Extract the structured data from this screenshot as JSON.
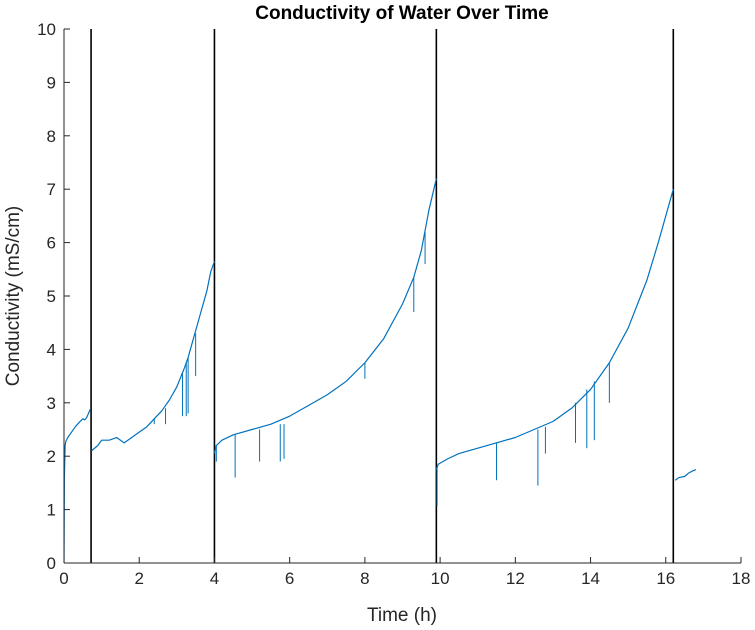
{
  "chart_data": {
    "type": "line",
    "title": "Conductivity of Water Over Time",
    "xlabel": "Time (h)",
    "ylabel": "Conductivity (mS/cm)",
    "xlim": [
      0,
      18
    ],
    "ylim": [
      0,
      10
    ],
    "xticks": [
      0,
      2,
      4,
      6,
      8,
      10,
      12,
      14,
      16,
      18
    ],
    "yticks": [
      0,
      1,
      2,
      3,
      4,
      5,
      6,
      7,
      8,
      9,
      10
    ],
    "grid": false,
    "legend": "none",
    "colors": {
      "series": "#0072bd",
      "vertical_lines": "#000000",
      "axes": "#262626"
    },
    "vertical_lines_x": [
      0.72,
      4.0,
      9.9,
      16.2
    ],
    "segments": [
      {
        "x": [
          0.0,
          0.01,
          0.03,
          0.05,
          0.1,
          0.2,
          0.3,
          0.4,
          0.5,
          0.55,
          0.6,
          0.65,
          0.7
        ],
        "y": [
          0.0,
          1.6,
          2.2,
          2.28,
          2.35,
          2.45,
          2.55,
          2.63,
          2.7,
          2.68,
          2.72,
          2.8,
          2.88
        ]
      },
      {
        "x": [
          0.73,
          0.9,
          1.0,
          1.2,
          1.4,
          1.6,
          1.8,
          2.0,
          2.2,
          2.4,
          2.6,
          2.8,
          3.0,
          3.2,
          3.3,
          3.4,
          3.6,
          3.8,
          3.9,
          4.0
        ],
        "y": [
          2.1,
          2.2,
          2.3,
          2.3,
          2.35,
          2.25,
          2.35,
          2.45,
          2.55,
          2.7,
          2.85,
          3.05,
          3.3,
          3.65,
          3.85,
          4.1,
          4.6,
          5.1,
          5.45,
          5.65
        ]
      },
      {
        "x": [
          4.0,
          4.05,
          4.2,
          4.5,
          5.0,
          5.5,
          6.0,
          6.5,
          7.0,
          7.5,
          8.0,
          8.5,
          9.0,
          9.3,
          9.5,
          9.7,
          9.9
        ],
        "y": [
          2.05,
          2.2,
          2.3,
          2.4,
          2.5,
          2.6,
          2.75,
          2.95,
          3.15,
          3.4,
          3.75,
          4.2,
          4.85,
          5.35,
          5.85,
          6.6,
          7.2
        ]
      },
      {
        "x": [
          9.9,
          9.95,
          10.2,
          10.5,
          11.0,
          11.5,
          12.0,
          12.5,
          13.0,
          13.5,
          14.0,
          14.5,
          15.0,
          15.5,
          15.8,
          16.0,
          16.2
        ],
        "y": [
          1.75,
          1.85,
          1.95,
          2.05,
          2.15,
          2.25,
          2.35,
          2.5,
          2.65,
          2.9,
          3.25,
          3.75,
          4.4,
          5.3,
          6.0,
          6.5,
          7.0
        ]
      },
      {
        "x": [
          16.25,
          16.35,
          16.5,
          16.6,
          16.7,
          16.8
        ],
        "y": [
          1.55,
          1.6,
          1.62,
          1.68,
          1.72,
          1.75
        ]
      }
    ],
    "dips": [
      {
        "x": 2.4,
        "y_top": 2.7,
        "y_bottom": 2.6
      },
      {
        "x": 2.7,
        "y_top": 2.9,
        "y_bottom": 2.6
      },
      {
        "x": 3.15,
        "y_top": 3.55,
        "y_bottom": 2.75
      },
      {
        "x": 3.25,
        "y_top": 3.75,
        "y_bottom": 2.75
      },
      {
        "x": 3.3,
        "y_top": 3.85,
        "y_bottom": 2.8
      },
      {
        "x": 3.5,
        "y_top": 4.3,
        "y_bottom": 3.5
      },
      {
        "x": 4.05,
        "y_top": 2.2,
        "y_bottom": 1.9
      },
      {
        "x": 4.55,
        "y_top": 2.4,
        "y_bottom": 1.6
      },
      {
        "x": 5.2,
        "y_top": 2.5,
        "y_bottom": 1.9
      },
      {
        "x": 5.75,
        "y_top": 2.6,
        "y_bottom": 1.9
      },
      {
        "x": 5.85,
        "y_top": 2.6,
        "y_bottom": 1.95
      },
      {
        "x": 8.0,
        "y_top": 3.75,
        "y_bottom": 3.45
      },
      {
        "x": 9.3,
        "y_top": 5.35,
        "y_bottom": 4.7
      },
      {
        "x": 9.6,
        "y_top": 6.2,
        "y_bottom": 5.6
      },
      {
        "x": 9.92,
        "y_top": 1.8,
        "y_bottom": 1.07
      },
      {
        "x": 11.5,
        "y_top": 2.25,
        "y_bottom": 1.55
      },
      {
        "x": 12.6,
        "y_top": 2.5,
        "y_bottom": 1.45
      },
      {
        "x": 12.8,
        "y_top": 2.55,
        "y_bottom": 2.05
      },
      {
        "x": 13.6,
        "y_top": 3.0,
        "y_bottom": 2.25
      },
      {
        "x": 13.9,
        "y_top": 3.25,
        "y_bottom": 2.15
      },
      {
        "x": 14.1,
        "y_top": 3.4,
        "y_bottom": 2.3
      },
      {
        "x": 14.5,
        "y_top": 3.75,
        "y_bottom": 3.0
      }
    ]
  }
}
